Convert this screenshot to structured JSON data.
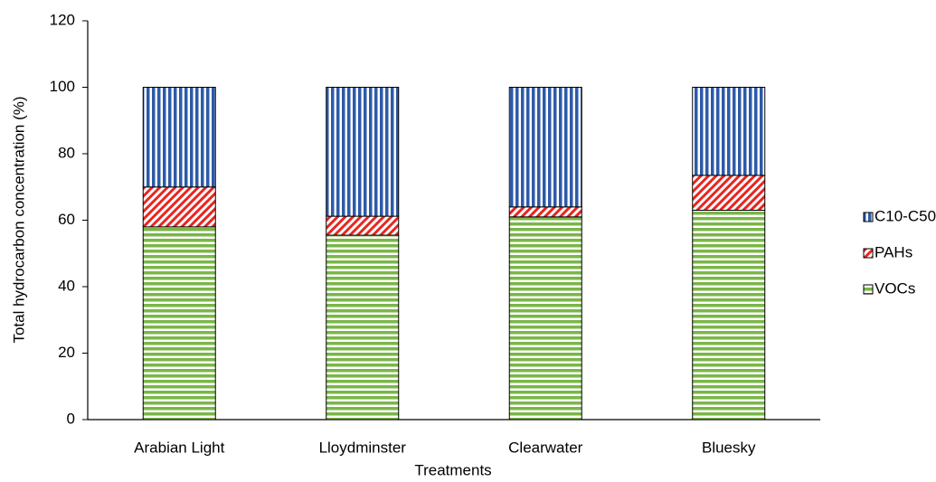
{
  "chart_data": {
    "type": "stacked_bar",
    "y_label": "Total hydrocarbon concentration (%)",
    "x_label": "Treatments",
    "categories": [
      "Arabian Light",
      "Lloydminster",
      "Clearwater",
      "Bluesky"
    ],
    "series": [
      {
        "name": "VOCs",
        "color": "#7ab648",
        "pattern": "horizontal",
        "values": [
          58,
          55.5,
          61,
          63
        ]
      },
      {
        "name": "PAHs",
        "color": "#e8251f",
        "pattern": "diagonal",
        "values": [
          12,
          5.7,
          3,
          10.5
        ]
      },
      {
        "name": "C10-C50",
        "color": "#2e5aa8",
        "pattern": "vertical",
        "values": [
          30,
          38.8,
          36,
          26.5
        ]
      }
    ],
    "ylim": [
      0,
      120
    ],
    "yticks": [
      0,
      20,
      40,
      60,
      80,
      100,
      120
    ],
    "legend": "right",
    "grid": false
  }
}
